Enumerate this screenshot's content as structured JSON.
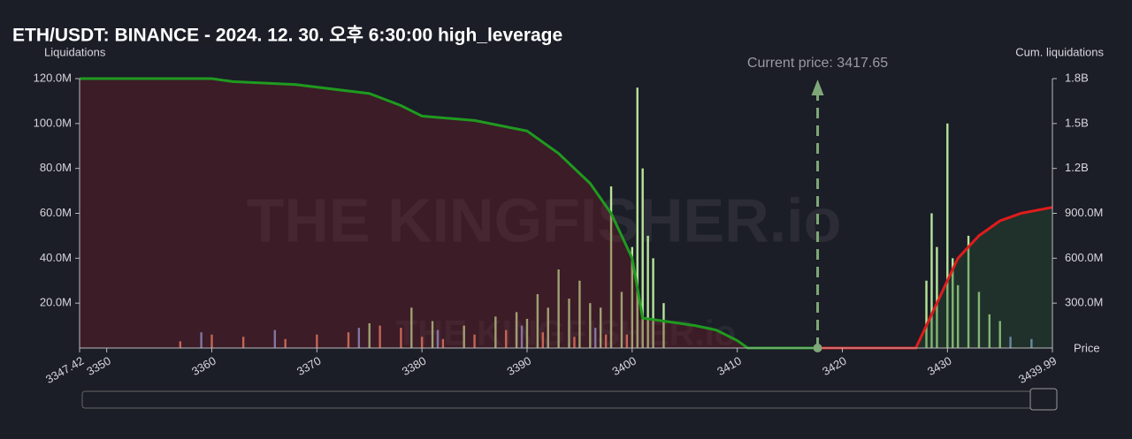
{
  "chart_data": {
    "type": "bar",
    "title": "ETH/USDT: BINANCE - 2024. 12. 30. 오후 6:30:00 high_leverage",
    "y_label": "Liquidations",
    "y2_label": "Cum. liquidations",
    "x_label": "Price",
    "watermark": "THE KINGFISHER.io",
    "current_price": 3417.65,
    "current_price_label": "Current price: 3417.65",
    "current_price_color": "#7fa878",
    "xlim": [
      3347.42,
      3439.99
    ],
    "xticks": [
      3347.42,
      3350,
      3360,
      3370,
      3380,
      3390,
      3400,
      3410,
      3420,
      3430,
      3439.99
    ],
    "ylim": [
      0,
      120000000
    ],
    "yticks": [
      {
        "value": 20000000,
        "label": "20.0M"
      },
      {
        "value": 40000000,
        "label": "40.0M"
      },
      {
        "value": 60000000,
        "label": "60.0M"
      },
      {
        "value": 80000000,
        "label": "80.0M"
      },
      {
        "value": 100000000,
        "label": "100.0M"
      },
      {
        "value": 120000000,
        "label": "120.0M"
      }
    ],
    "y2lim": [
      0,
      1800000000
    ],
    "y2ticks": [
      {
        "value": 300000000,
        "label": "300.0M"
      },
      {
        "value": 600000000,
        "label": "600.0M"
      },
      {
        "value": 900000000,
        "label": "900.0M"
      },
      {
        "value": 1200000000,
        "label": "1.2B"
      },
      {
        "value": 1500000000,
        "label": "1.5B"
      },
      {
        "value": 1800000000,
        "label": "1.8B"
      }
    ],
    "series": [
      {
        "type": "bar",
        "color": "#b5e59a",
        "x": [
          3375,
          3379,
          3381,
          3384,
          3387,
          3389,
          3390,
          3391,
          3392,
          3393,
          3394,
          3395,
          3396,
          3397,
          3398,
          3399,
          3400,
          3400.5,
          3401,
          3401.5,
          3402,
          3403,
          3428,
          3428.5,
          3429,
          3430,
          3430.5,
          3431,
          3432,
          3433,
          3434,
          3435
        ],
        "values": [
          11000000,
          18000000,
          12000000,
          10000000,
          14000000,
          16000000,
          13000000,
          24000000,
          18000000,
          35000000,
          22000000,
          30000000,
          20000000,
          18000000,
          72000000,
          25000000,
          45000000,
          116000000,
          80000000,
          50000000,
          40000000,
          20000000,
          30000000,
          60000000,
          45000000,
          100000000,
          40000000,
          28000000,
          50000000,
          25000000,
          15000000,
          12000000
        ]
      },
      {
        "type": "bar",
        "color": "#f08a6a",
        "x": [
          3357,
          3360,
          3363,
          3367,
          3370,
          3373,
          3376,
          3378,
          3380,
          3382,
          3385,
          3388,
          3391.5,
          3394.5,
          3397.5,
          3399.5
        ],
        "values": [
          3000000,
          6000000,
          5000000,
          4000000,
          6000000,
          7000000,
          10000000,
          9000000,
          5000000,
          4000000,
          6000000,
          8000000,
          7000000,
          5000000,
          6000000,
          6000000
        ]
      },
      {
        "type": "bar",
        "color": "#8aa4e0",
        "x": [
          3359,
          3366,
          3374,
          3381.5,
          3389.5,
          3396.5,
          3436,
          3438
        ],
        "values": [
          7000000,
          8000000,
          9000000,
          8000000,
          10000000,
          9000000,
          5000000,
          4000000
        ]
      },
      {
        "type": "line",
        "axis": "y2",
        "color": "#1f9a1f",
        "area_color": "rgba(120,30,40,0.35)",
        "x": [
          3347.42,
          3360,
          3362,
          3368,
          3375,
          3378,
          3380,
          3385,
          3390,
          3393,
          3396,
          3398,
          3400,
          3401,
          3406,
          3408,
          3410,
          3411,
          3417.65
        ],
        "values": [
          1800000000,
          1800000000,
          1780000000,
          1760000000,
          1700000000,
          1620000000,
          1550000000,
          1520000000,
          1450000000,
          1300000000,
          1100000000,
          900000000,
          600000000,
          200000000,
          150000000,
          120000000,
          50000000,
          0,
          0
        ]
      },
      {
        "type": "line",
        "axis": "y2",
        "color": "#e01c1c",
        "area_color": "rgba(40,90,50,0.35)",
        "x": [
          3417.65,
          3427,
          3428,
          3429,
          3430,
          3431,
          3433,
          3435,
          3437,
          3439.99
        ],
        "values": [
          0,
          0,
          150000000,
          300000000,
          450000000,
          600000000,
          750000000,
          850000000,
          900000000,
          940000000
        ]
      }
    ]
  }
}
